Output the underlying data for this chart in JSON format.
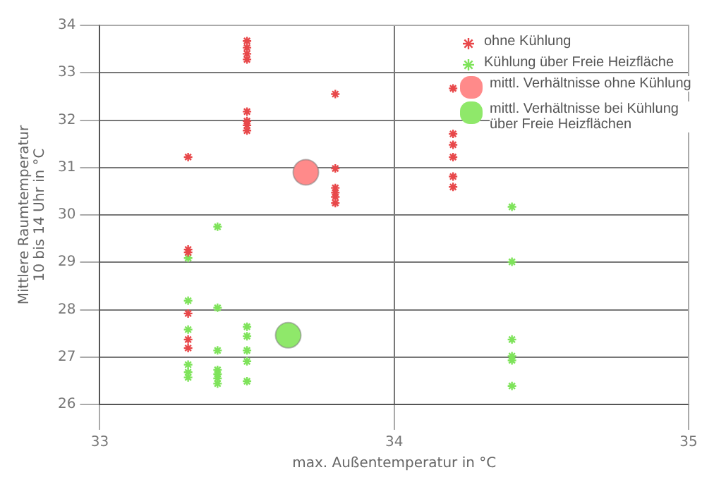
{
  "chart_data": {
    "type": "scatter",
    "xlabel": "max. Außentemperatur in °C",
    "ylabel": "Mittlere Raumtemperatur\n10 bis 14 Uhr in °C",
    "xlim": [
      33,
      35
    ],
    "xticks": [
      33,
      34,
      35
    ],
    "ylim": [
      26,
      34
    ],
    "yticks": [
      26,
      27,
      28,
      29,
      30,
      31,
      32,
      33,
      34
    ],
    "grid": true,
    "legend": "top right",
    "series": [
      {
        "name": "ohne Kühlung",
        "color": "#e8484a",
        "marker": "cross",
        "x": [
          33.3,
          33.3,
          33.3,
          33.3,
          33.3,
          33.3,
          33.5,
          33.5,
          33.5,
          33.5,
          33.5,
          33.5,
          33.5,
          33.5,
          33.8,
          33.8,
          33.8,
          33.8,
          33.8,
          33.8,
          34.2,
          34.2,
          34.2,
          34.2,
          34.2,
          34.2
        ],
        "values": [
          31.22,
          29.27,
          29.21,
          27.92,
          27.37,
          27.19,
          33.67,
          33.53,
          33.4,
          33.28,
          32.18,
          31.98,
          31.89,
          31.78,
          32.55,
          30.98,
          30.57,
          30.47,
          30.38,
          30.25,
          32.67,
          31.71,
          31.48,
          31.22,
          30.81,
          30.59
        ]
      },
      {
        "name": "Kühlung über Freie Heizfläche",
        "color": "#7ee35a",
        "marker": "cross",
        "x": [
          33.3,
          33.3,
          33.3,
          33.3,
          33.3,
          33.3,
          33.4,
          33.4,
          33.4,
          33.4,
          33.4,
          33.4,
          33.4,
          33.5,
          33.5,
          33.5,
          33.5,
          33.5,
          34.4,
          34.4,
          34.4,
          34.4,
          34.4,
          34.4
        ],
        "values": [
          29.09,
          28.19,
          27.58,
          26.84,
          26.68,
          26.57,
          29.75,
          28.04,
          27.14,
          26.73,
          26.64,
          26.55,
          26.44,
          27.64,
          27.44,
          27.14,
          26.91,
          26.49,
          30.17,
          29.01,
          27.37,
          27.02,
          26.93,
          26.39
        ]
      },
      {
        "name": "mittl. Verhältnisse ohne Kühlung",
        "color": "#ff8a8a",
        "marker": "circle",
        "x": [
          33.7
        ],
        "values": [
          30.9
        ]
      },
      {
        "name": "mittl. Verhältnisse bei Kühlung über Freie Heizflächen",
        "color": "#8fe86a",
        "marker": "circle",
        "x": [
          33.64
        ],
        "values": [
          27.46
        ]
      }
    ]
  }
}
